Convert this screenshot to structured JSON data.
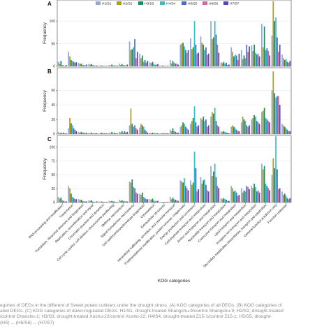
{
  "chart_data": {
    "type": "bar",
    "x_label": "KOG categories",
    "legend": [
      "H1/S1",
      "H2/S2",
      "H3/S3",
      "H4/S4",
      "H5/S5",
      "H6/S6",
      "H7/S7"
    ],
    "colors": [
      "#8faadc",
      "#b59a1f",
      "#1f8a5e",
      "#2bbfcf",
      "#4a6fb5",
      "#cc6ca6",
      "#5a4a9c"
    ],
    "categories": [
      "RNA processing and modification",
      "Transcription",
      "Translation, ribosomal structure and biogenesis",
      "Replication, recombination and repair",
      "Chromatin structure and dynamics",
      "Cell cycle control, cell division, chromosome partitioning",
      "Defense mechanisms",
      "Signal transduction mechanisms",
      "Cell wall/membrane/envelope biogenesis",
      "Cytoskeleton",
      "Extracellular structures",
      "Intracellular trafficking, secretion, and vesicular transport",
      "Posttranslational modification, protein turnover, chaperones",
      "Energy production and conversion",
      "Carbohydrate transport and metabolism",
      "Amino acid transport and metabolism",
      "Nucleotide transport and metabolism",
      "Coenzyme transport and metabolism",
      "Lipid transport and metabolism",
      "Inorganic ion transport and metabolism",
      "Secondary metabolites biosynthesis, transport and catabolism",
      "General function prediction only",
      "Function unknown"
    ],
    "panels": [
      {
        "label": "A",
        "ylabel": "Frequency",
        "ylim": [
          0,
          145
        ],
        "yticks": [
          0,
          50,
          100
        ],
        "values": [
          [
            10,
            6,
            12,
            3,
            2,
            1,
            3
          ],
          [
            32,
            22,
            14,
            12,
            10,
            8,
            9
          ],
          [
            8,
            5,
            6,
            3,
            3,
            2,
            4
          ],
          [
            5,
            4,
            5,
            3,
            2,
            1,
            2
          ],
          [
            2,
            1,
            2,
            1,
            1,
            1,
            1
          ],
          [
            3,
            2,
            4,
            2,
            2,
            1,
            2
          ],
          [
            6,
            3,
            5,
            3,
            2,
            2,
            4
          ],
          [
            55,
            36,
            38,
            42,
            60,
            18,
            32
          ],
          [
            28,
            18,
            24,
            10,
            14,
            8,
            12
          ],
          [
            9,
            7,
            10,
            6,
            3,
            4,
            5
          ],
          [
            2,
            1,
            2,
            1,
            1,
            1,
            1
          ],
          [
            14,
            6,
            12,
            8,
            6,
            6,
            4
          ],
          [
            48,
            50,
            52,
            44,
            36,
            30,
            36
          ],
          [
            62,
            38,
            42,
            100,
            48,
            28,
            30
          ],
          [
            66,
            52,
            48,
            36,
            42,
            25,
            28
          ],
          [
            100,
            60,
            64,
            100,
            70,
            48,
            30
          ],
          [
            9,
            7,
            10,
            6,
            8,
            3,
            4
          ],
          [
            42,
            32,
            22,
            26,
            24,
            14,
            28
          ],
          [
            36,
            16,
            24,
            18,
            48,
            32,
            44
          ],
          [
            46,
            34,
            48,
            30,
            26,
            28,
            22
          ],
          [
            94,
            42,
            88,
            36,
            40,
            34,
            24
          ],
          [
            68,
            144,
            100,
            108,
            64,
            32,
            48
          ],
          [
            26,
            18,
            14,
            16,
            10,
            8,
            12
          ]
        ]
      },
      {
        "label": "B",
        "ylabel": "Frequency",
        "ylim": [
          0,
          90
        ],
        "yticks": [
          0,
          20,
          40,
          60
        ],
        "values": [
          [
            3,
            1,
            2,
            1,
            2,
            1,
            1
          ],
          [
            8,
            22,
            15,
            12,
            8,
            6,
            4
          ],
          [
            3,
            2,
            3,
            2,
            2,
            1,
            2
          ],
          [
            2,
            1,
            2,
            1,
            1,
            1,
            1
          ],
          [
            1,
            1,
            2,
            1,
            1,
            1,
            1
          ],
          [
            2,
            1,
            3,
            1,
            2,
            1,
            1
          ],
          [
            3,
            2,
            4,
            2,
            4,
            2,
            3
          ],
          [
            12,
            35,
            14,
            10,
            12,
            8,
            6
          ],
          [
            9,
            14,
            12,
            10,
            6,
            4,
            2
          ],
          [
            2,
            1,
            2,
            1,
            1,
            1,
            1
          ],
          [
            1,
            1,
            1,
            1,
            1,
            1,
            1
          ],
          [
            6,
            4,
            8,
            4,
            3,
            2,
            2
          ],
          [
            10,
            12,
            16,
            14,
            10,
            8,
            6
          ],
          [
            14,
            18,
            22,
            38,
            16,
            10,
            12
          ],
          [
            22,
            20,
            24,
            18,
            20,
            10,
            12
          ],
          [
            24,
            30,
            28,
            36,
            18,
            12,
            10
          ],
          [
            4,
            3,
            4,
            3,
            2,
            2,
            1
          ],
          [
            10,
            12,
            10,
            8,
            6,
            4,
            4
          ],
          [
            16,
            24,
            20,
            18,
            12,
            10,
            12
          ],
          [
            20,
            22,
            26,
            24,
            18,
            16,
            14
          ],
          [
            30,
            32,
            36,
            22,
            20,
            18,
            16
          ],
          [
            60,
            86,
            56,
            50,
            52,
            52,
            40
          ],
          [
            14,
            12,
            10,
            8,
            6,
            4,
            4
          ]
        ]
      },
      {
        "label": "C",
        "ylabel": "Frequency",
        "ylim": [
          0,
          120
        ],
        "yticks": [
          0,
          25,
          50,
          75,
          100
        ],
        "values": [
          [
            10,
            7,
            9,
            4,
            3,
            2,
            2
          ],
          [
            30,
            26,
            16,
            10,
            8,
            6,
            6
          ],
          [
            6,
            4,
            5,
            3,
            2,
            2,
            2
          ],
          [
            4,
            3,
            4,
            2,
            1,
            1,
            2
          ],
          [
            2,
            1,
            2,
            1,
            1,
            1,
            1
          ],
          [
            3,
            2,
            3,
            2,
            2,
            1,
            1
          ],
          [
            5,
            3,
            4,
            3,
            2,
            2,
            2
          ],
          [
            38,
            36,
            42,
            28,
            26,
            18,
            16
          ],
          [
            16,
            14,
            18,
            10,
            8,
            6,
            6
          ],
          [
            6,
            5,
            7,
            4,
            2,
            3,
            3
          ],
          [
            1,
            1,
            1,
            1,
            1,
            1,
            1
          ],
          [
            10,
            6,
            9,
            6,
            5,
            4,
            3
          ],
          [
            40,
            38,
            36,
            44,
            30,
            26,
            22
          ],
          [
            40,
            32,
            36,
            92,
            62,
            20,
            24
          ],
          [
            46,
            34,
            40,
            42,
            32,
            22,
            20
          ],
          [
            66,
            48,
            56,
            70,
            46,
            30,
            26
          ],
          [
            8,
            6,
            8,
            6,
            5,
            3,
            3
          ],
          [
            30,
            26,
            20,
            22,
            18,
            12,
            14
          ],
          [
            26,
            18,
            22,
            20,
            30,
            28,
            24
          ],
          [
            30,
            26,
            34,
            28,
            20,
            22,
            18
          ],
          [
            70,
            60,
            66,
            34,
            30,
            26,
            22
          ],
          [
            50,
            80,
            62,
            120,
            60,
            24,
            26
          ],
          [
            20,
            14,
            16,
            12,
            8,
            6,
            8
          ]
        ]
      }
    ]
  },
  "caption": [
    "egories of DEGs in the different of Sweet potato cultivars under the drought stress. (A) KOG categories of all DEGs. (B) KOG categories of",
    "ated DEGs. (C) KOG categories of down-regulated DEGs. H1/S1, drought-treated Shangshu-9/control Shangshu-9; H2/S2, drought-treated",
    "/control Chaoshu-1; H3/S3, drought-treated Xushu-22/control Xushu-22; H4/S4, drought-treated Z15-1/control Z15-1; H5/S5, drought-",
    "(HS) ... (H6/S6) ... (H7/S7)"
  ]
}
